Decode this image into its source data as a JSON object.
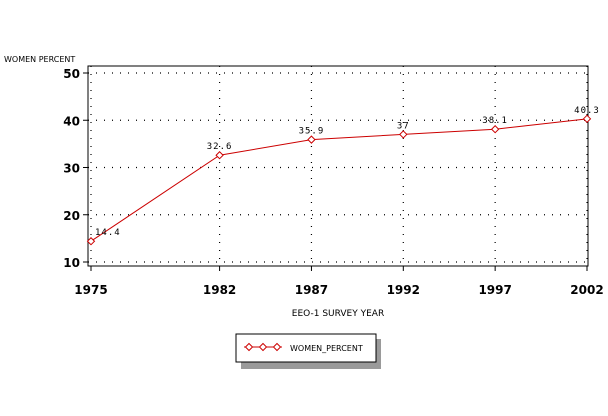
{
  "chart_data": {
    "type": "line",
    "ylabel": "WOMEN PERCENT",
    "xlabel": "EEO-1 SURVEY YEAR",
    "x": [
      1975,
      1982,
      1987,
      1992,
      1997,
      2002
    ],
    "xticks": [
      "1975",
      "1982",
      "1987",
      "1992",
      "1997",
      "2002"
    ],
    "yticks": [
      "10",
      "20",
      "30",
      "40",
      "50"
    ],
    "ylim": [
      10,
      50
    ],
    "grid": true,
    "legend_position": "bottom-center",
    "series": [
      {
        "name": "WOMEN_PERCENT",
        "values": [
          14.4,
          32.6,
          35.9,
          37,
          38.1,
          40.3
        ],
        "labels": [
          "14.4",
          "32.6",
          "35.9",
          "37",
          "38.1",
          "40.3"
        ],
        "color": "#cc0000",
        "marker": "diamond"
      }
    ]
  }
}
